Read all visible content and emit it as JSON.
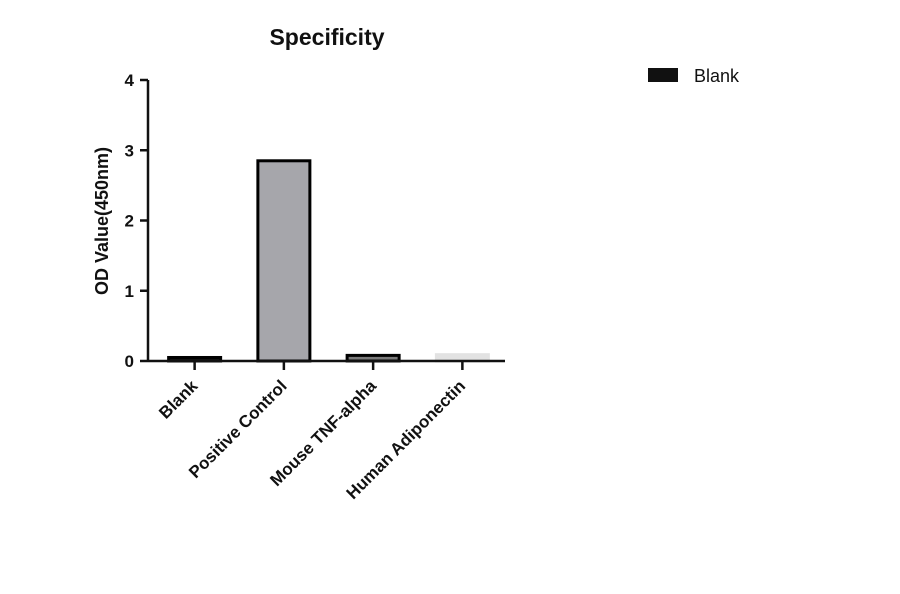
{
  "chart_data": {
    "type": "bar",
    "title": "Specificity",
    "ylabel": "OD Value(450nm)",
    "xlabel": "",
    "categories": [
      "Blank",
      "Positive Control",
      "Mouse TNF-alpha",
      "Human Adiponectin"
    ],
    "series": [
      {
        "name": "Blank",
        "values": [
          0.05,
          2.85,
          0.08,
          0.09
        ]
      }
    ],
    "ylim": [
      0,
      4
    ],
    "yticks": [
      0,
      1,
      2,
      3,
      4
    ],
    "bar_fill_colors": [
      "#1a1a1a",
      "#a6a6ab",
      "#7a7a7a",
      "#e2e2e2"
    ],
    "bar_stroke_colors": [
      "#000000",
      "#000000",
      "#000000",
      "#e2e2e2"
    ],
    "legend_color": "#111111",
    "legend_position": "top-right",
    "grid": false
  }
}
